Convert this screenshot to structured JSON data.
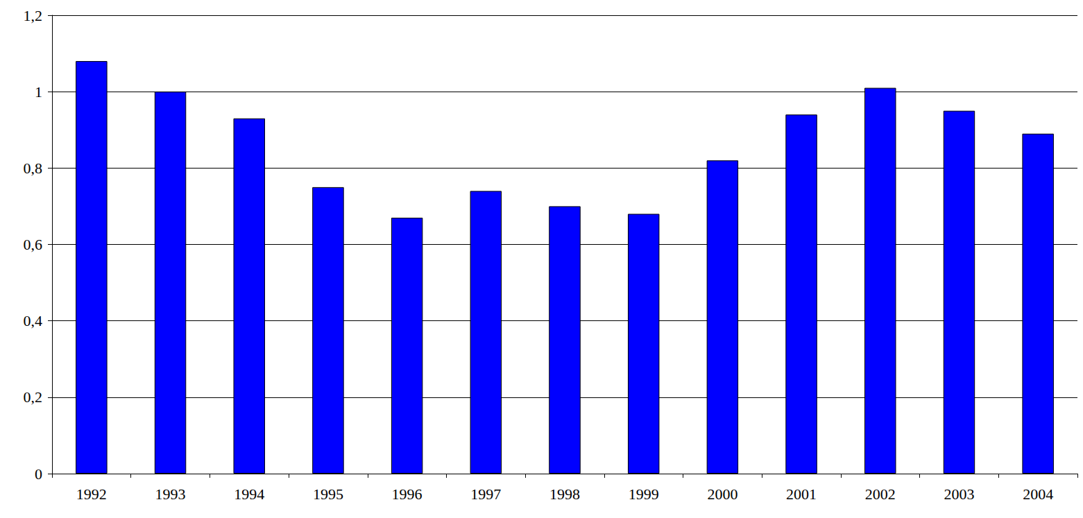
{
  "chart_data": {
    "type": "bar",
    "categories": [
      "1992",
      "1993",
      "1994",
      "1995",
      "1996",
      "1997",
      "1998",
      "1999",
      "2000",
      "2001",
      "2002",
      "2003",
      "2004"
    ],
    "values": [
      1.08,
      1.0,
      0.93,
      0.75,
      0.67,
      0.74,
      0.7,
      0.68,
      0.82,
      0.94,
      1.01,
      0.95,
      0.89
    ],
    "color": "#0000ff",
    "ylim": [
      0,
      1.2
    ],
    "yticks": [
      0,
      {
        "value": 0.2,
        "label": "0,2"
      },
      {
        "value": 0.4,
        "label": "0,4"
      },
      {
        "value": 0.6,
        "label": "0,6"
      },
      {
        "value": 0.8,
        "label": "0,8"
      },
      1,
      {
        "value": 1.2,
        "label": "1,2"
      }
    ],
    "grid": true
  }
}
